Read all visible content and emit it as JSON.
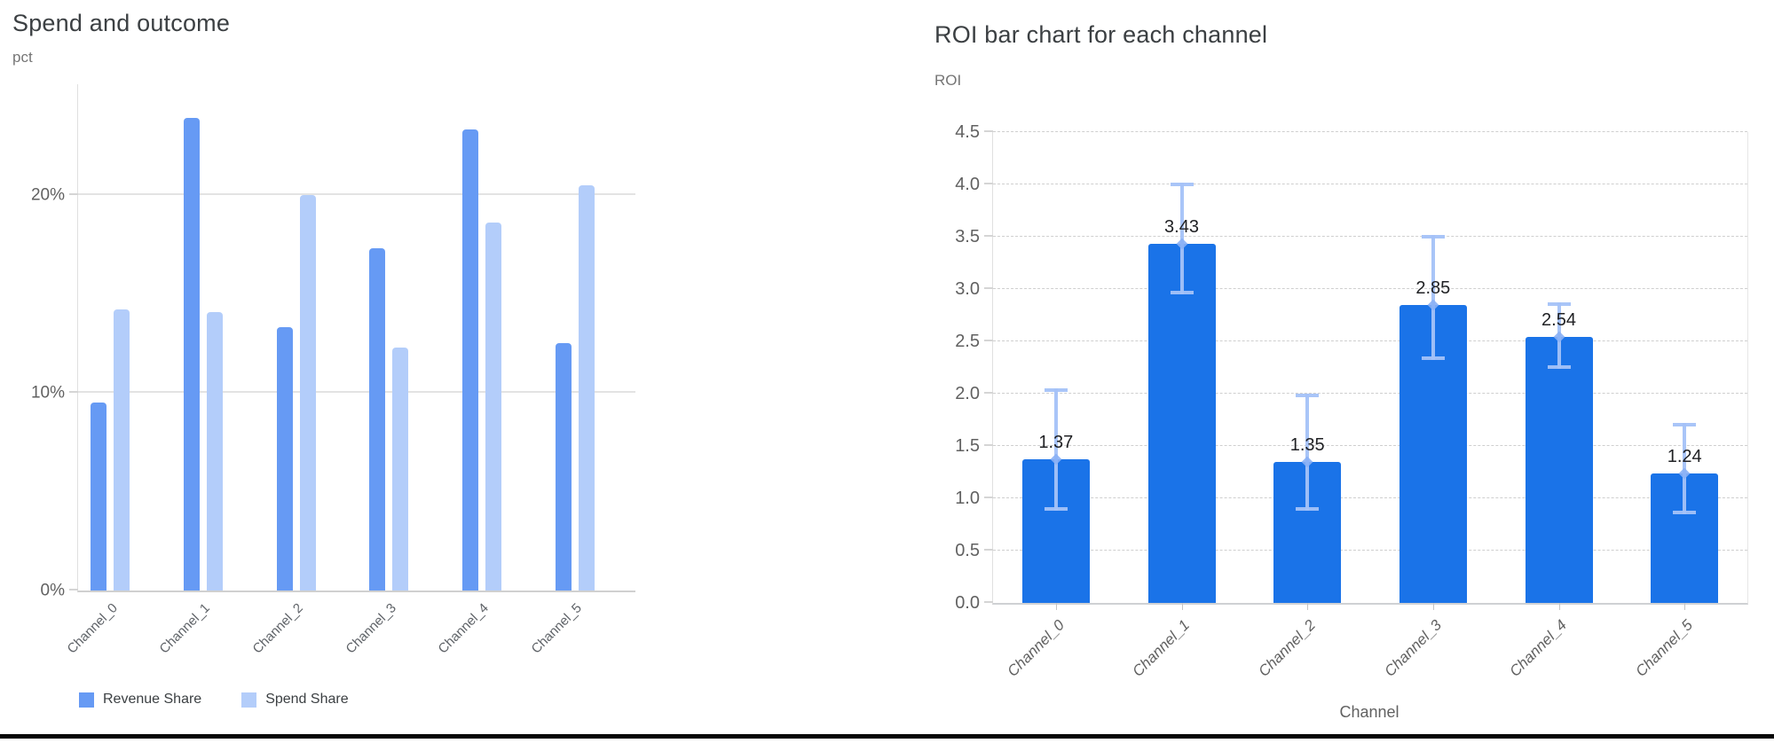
{
  "chart_data": [
    {
      "type": "bar",
      "title": "Spend and outcome",
      "ylabel": "pct",
      "xlabel": "",
      "categories": [
        "Channel_0",
        "Channel_1",
        "Channel_2",
        "Channel_3",
        "Channel_4",
        "Channel_5"
      ],
      "series": [
        {
          "name": "Revenue Share",
          "color": "#669af4",
          "values": [
            9.5,
            23.9,
            13.3,
            17.3,
            23.3,
            12.5
          ]
        },
        {
          "name": "Spend Share",
          "color": "#b3cdfa",
          "values": [
            14.2,
            14.1,
            20.0,
            12.3,
            18.6,
            20.5
          ]
        }
      ],
      "yticks": [
        {
          "label": "0%",
          "value": 0
        },
        {
          "label": "10%",
          "value": 10
        },
        {
          "label": "20%",
          "value": 20
        }
      ],
      "ylim": [
        0,
        25.6
      ],
      "grid": "horizontal-solid",
      "legend_position": "bottom-left",
      "legend": [
        "Revenue Share",
        "Spend Share"
      ]
    },
    {
      "type": "bar",
      "title": "ROI bar chart for each channel",
      "ylabel": "ROI",
      "xlabel": "Channel",
      "categories": [
        "Channel_0",
        "Channel_1",
        "Channel_2",
        "Channel_3",
        "Channel_4",
        "Channel_5"
      ],
      "values": [
        1.37,
        3.43,
        1.35,
        2.85,
        2.54,
        1.24
      ],
      "value_labels": [
        "1.37",
        "3.43",
        "1.35",
        "2.85",
        "2.54",
        "1.24"
      ],
      "error_low": [
        0.88,
        2.95,
        0.88,
        2.32,
        2.24,
        0.85
      ],
      "error_high": [
        2.05,
        4.02,
        2.0,
        3.52,
        2.87,
        1.72
      ],
      "bar_color": "#1a73e8",
      "error_color": "#a4c2f8",
      "marker_color": "#8ab0f5",
      "yticks": [
        {
          "label": "0.0",
          "value": 0.0
        },
        {
          "label": "0.5",
          "value": 0.5
        },
        {
          "label": "1.0",
          "value": 1.0
        },
        {
          "label": "1.5",
          "value": 1.5
        },
        {
          "label": "2.0",
          "value": 2.0
        },
        {
          "label": "2.5",
          "value": 2.5
        },
        {
          "label": "3.0",
          "value": 3.0
        },
        {
          "label": "3.5",
          "value": 3.5
        },
        {
          "label": "4.0",
          "value": 4.0
        },
        {
          "label": "4.5",
          "value": 4.5
        }
      ],
      "ylim": [
        0,
        4.5
      ],
      "grid": "horizontal-dashed",
      "legend_position": "none"
    }
  ]
}
